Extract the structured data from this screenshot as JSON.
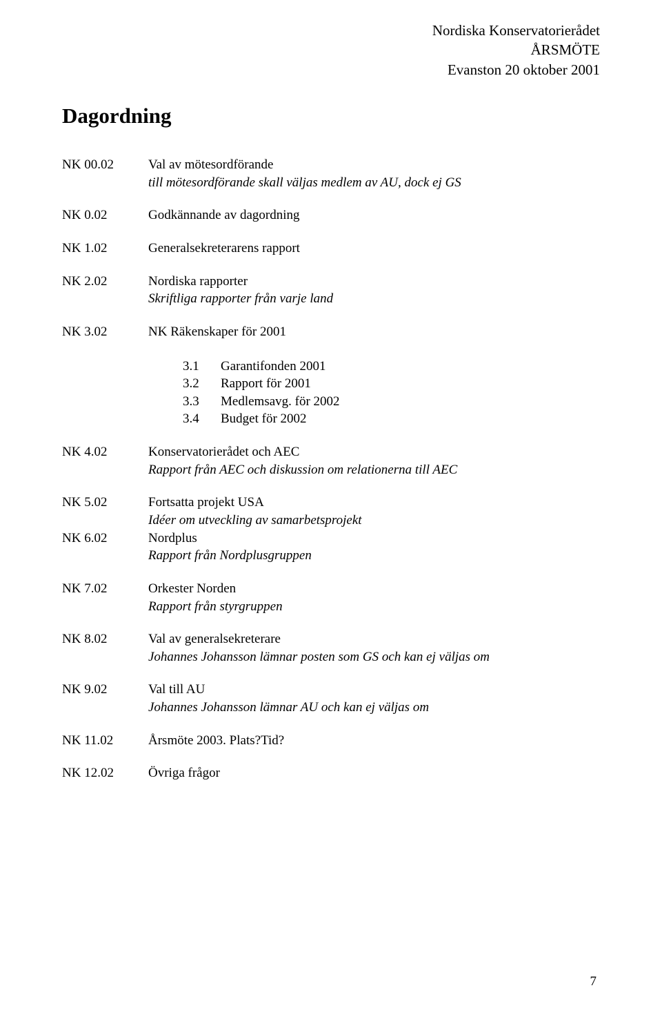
{
  "header": {
    "line1": "Nordiska Konservatorierådet",
    "line2": "ÅRSMÖTE",
    "line3": "Evanston 20 oktober 2001"
  },
  "title": "Dagordning",
  "items": [
    {
      "key": "NK 00.02",
      "lines": [
        {
          "text": "Val av mötesordförande"
        },
        {
          "text": "till mötesordförande skall väljas medlem av AU, dock ej GS",
          "italic": true
        }
      ]
    },
    {
      "key": "NK 0.02",
      "lines": [
        {
          "text": "Godkännande av dagordning"
        }
      ]
    },
    {
      "key": "NK 1.02",
      "lines": [
        {
          "text": "Generalsekreterarens rapport"
        }
      ]
    },
    {
      "key": "NK 2.02",
      "lines": [
        {
          "text": "Nordiska rapporter"
        },
        {
          "text": "Skriftliga rapporter från varje land",
          "italic": true
        }
      ]
    },
    {
      "key": "NK 3.02",
      "lines": [
        {
          "text": "NK Räkenskaper för 2001"
        }
      ],
      "sublist": [
        {
          "num": "3.1",
          "text": "Garantifonden 2001"
        },
        {
          "num": "3.2",
          "text": "Rapport för 2001"
        },
        {
          "num": "3.3",
          "text": "Medlemsavg. för 2002"
        },
        {
          "num": "3.4",
          "text": "Budget för 2002"
        }
      ]
    },
    {
      "key": "NK 4.02",
      "lines": [
        {
          "text": "Konservatorierådet och AEC"
        },
        {
          "text": "Rapport från AEC och diskussion om relationerna till AEC",
          "italic": true
        }
      ]
    },
    {
      "key": "NK 5.02",
      "tight": true,
      "lines": [
        {
          "text": "Fortsatta projekt USA"
        },
        {
          "text": "Idéer om utveckling av samarbetsprojekt",
          "italic": true
        }
      ]
    },
    {
      "key": "NK 6.02",
      "lines": [
        {
          "text": "Nordplus"
        },
        {
          "text": "Rapport från Nordplusgruppen",
          "italic": true
        }
      ]
    },
    {
      "key": "NK 7.02",
      "lines": [
        {
          "text": "Orkester Norden"
        },
        {
          "text": "Rapport från styrgruppen",
          "italic": true
        }
      ]
    },
    {
      "key": "NK 8.02",
      "lines": [
        {
          "text": "Val av generalsekreterare"
        },
        {
          "text": "Johannes Johansson lämnar posten som GS och kan ej väljas om",
          "italic": true
        }
      ]
    },
    {
      "key": "NK 9.02",
      "lines": [
        {
          "text": "Val till AU"
        },
        {
          "text": "Johannes Johansson lämnar AU och kan ej väljas om",
          "italic": true
        }
      ]
    },
    {
      "key": "NK 11.02",
      "lines": [
        {
          "text": "Årsmöte 2003. Plats?Tid?"
        }
      ]
    },
    {
      "key": "NK 12.02",
      "lines": [
        {
          "text": "Övriga frågor"
        }
      ]
    }
  ],
  "pageNumber": "7"
}
